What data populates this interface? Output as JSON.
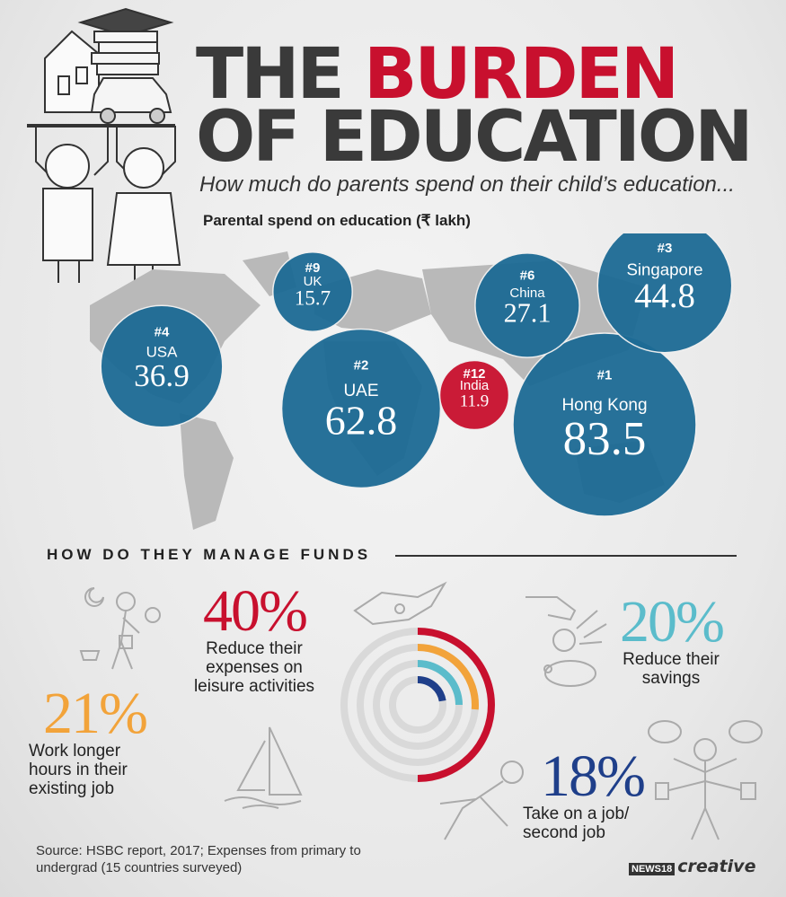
{
  "header": {
    "title_word_1": "THE",
    "title_word_2": "BURDEN",
    "title_line_2": "OF EDUCATION",
    "subtitle": "How much do parents spend on their child’s education...",
    "map_label": "Parental spend on education (₹ lakh)"
  },
  "chart_data": {
    "type": "bubble",
    "title": "Parental spend on education (₹ lakh)",
    "series": [
      {
        "rank": "#1",
        "country": "Hong Kong",
        "value": 83.5,
        "color": "#1d6b95"
      },
      {
        "rank": "#2",
        "country": "UAE",
        "value": 62.8,
        "color": "#1d6b95"
      },
      {
        "rank": "#3",
        "country": "Singapore",
        "value": 44.8,
        "color": "#1d6b95"
      },
      {
        "rank": "#4",
        "country": "USA",
        "value": 36.9,
        "color": "#1d6b95"
      },
      {
        "rank": "#6",
        "country": "China",
        "value": 27.1,
        "color": "#1d6b95"
      },
      {
        "rank": "#9",
        "country": "UK",
        "value": 15.7,
        "color": "#1d6b95"
      },
      {
        "rank": "#12",
        "country": "India",
        "value": 11.9,
        "color": "#c8102e"
      }
    ]
  },
  "funds": {
    "section_title": "HOW DO THEY MANAGE FUNDS",
    "items": [
      {
        "percent": "40%",
        "label": "Reduce their expenses on leisure activities",
        "value": 40,
        "color": "#c8102e"
      },
      {
        "percent": "21%",
        "label": "Work longer hours in their existing job",
        "value": 21,
        "color": "#f2a33a"
      },
      {
        "percent": "20%",
        "label": "Reduce their savings",
        "value": 20,
        "color": "#5bbccb"
      },
      {
        "percent": "18%",
        "label": "Take on a job/ second job",
        "value": 18,
        "color": "#1f3f8a"
      }
    ]
  },
  "footer": {
    "source": "Source: HSBC report, 2017; Expenses from primary to undergrad (15 countries surveyed)",
    "logo_news": "NEWS18",
    "logo_creative": "creative"
  },
  "colors": {
    "accent_red": "#c8102e",
    "bubble_blue": "#1d6b95",
    "title_gray": "#3a3a3a"
  }
}
